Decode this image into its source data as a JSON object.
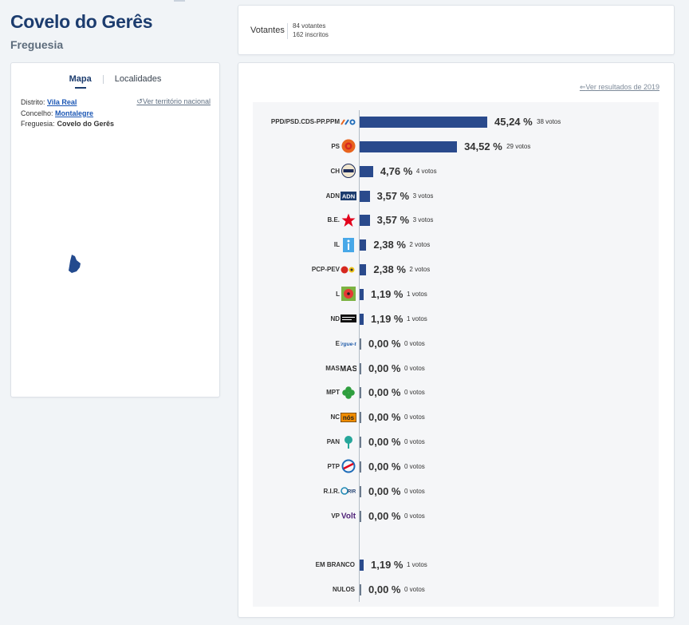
{
  "header": {
    "title": "Covelo do Gerês",
    "subtitle": "Freguesia"
  },
  "tabs": [
    {
      "label": "Mapa",
      "active": true
    },
    {
      "label": "Localidades",
      "active": false
    }
  ],
  "location": {
    "district_label": "Distrito:",
    "district": "Vila Real",
    "council_label": "Concelho:",
    "council": "Montalegre",
    "parish_label": "Freguesia:",
    "parish": "Covelo do Gerês",
    "national_link": "Ver território nacional"
  },
  "voters": {
    "label": "Votantes",
    "voters": "84 votantes",
    "registered": "162 inscritos"
  },
  "results_link": "Ver resultados de 2019",
  "colors": {
    "bar": "#2a4a8c",
    "title": "#1c3c6e",
    "link": "#1a56b4"
  },
  "chart_data": {
    "type": "bar",
    "orientation": "horizontal",
    "unit": "%",
    "rows": [
      {
        "party": "PPD/PSD.CDS-PP.PPM",
        "percent": "45,24 %",
        "value": 45.24,
        "votes": "38 votos",
        "logo": "ad-coalition-logo"
      },
      {
        "party": "PS",
        "percent": "34,52 %",
        "value": 34.52,
        "votes": "29 votos",
        "logo": "ps-fist-rose-logo"
      },
      {
        "party": "CH",
        "percent": "4,76 %",
        "value": 4.76,
        "votes": "4 votos",
        "logo": "chega-logo"
      },
      {
        "party": "ADN",
        "percent": "3,57 %",
        "value": 3.57,
        "votes": "3 votos",
        "logo": "adn-logo"
      },
      {
        "party": "B.E.",
        "percent": "3,57 %",
        "value": 3.57,
        "votes": "3 votos",
        "logo": "be-star-logo"
      },
      {
        "party": "IL",
        "percent": "2,38 %",
        "value": 2.38,
        "votes": "2 votos",
        "logo": "il-logo"
      },
      {
        "party": "PCP-PEV",
        "percent": "2,38 %",
        "value": 2.38,
        "votes": "2 votos",
        "logo": "cdu-logo"
      },
      {
        "party": "L",
        "percent": "1,19 %",
        "value": 1.19,
        "votes": "1 votos",
        "logo": "livre-poppy-logo"
      },
      {
        "party": "ND",
        "percent": "1,19 %",
        "value": 1.19,
        "votes": "1 votos",
        "logo": "nova-direita-logo"
      },
      {
        "party": "E",
        "percent": "0,00 %",
        "value": 0,
        "votes": "0 votos",
        "logo": "ergue-te-logo"
      },
      {
        "party": "MAS",
        "percent": "0,00 %",
        "value": 0,
        "votes": "0 votos",
        "logo": "mas-logo"
      },
      {
        "party": "MPT",
        "percent": "0,00 %",
        "value": 0,
        "votes": "0 votos",
        "logo": "mpt-clover-logo"
      },
      {
        "party": "NC",
        "percent": "0,00 %",
        "value": 0,
        "votes": "0 votos",
        "logo": "nos-cidadaos-logo"
      },
      {
        "party": "PAN",
        "percent": "0,00 %",
        "value": 0,
        "votes": "0 votos",
        "logo": "pan-tree-logo"
      },
      {
        "party": "PTP",
        "percent": "0,00 %",
        "value": 0,
        "votes": "0 votos",
        "logo": "ptp-logo"
      },
      {
        "party": "R.I.R.",
        "percent": "0,00 %",
        "value": 0,
        "votes": "0 votos",
        "logo": "rir-logo"
      },
      {
        "party": "VP",
        "percent": "0,00 %",
        "value": 0,
        "votes": "0 votos",
        "logo": "volt-logo"
      },
      {
        "party": "EM BRANCO",
        "percent": "1,19 %",
        "value": 1.19,
        "votes": "1 votos",
        "logo": ""
      },
      {
        "party": "NULOS",
        "percent": "0,00 %",
        "value": 0,
        "votes": "0 votos",
        "logo": ""
      }
    ]
  }
}
